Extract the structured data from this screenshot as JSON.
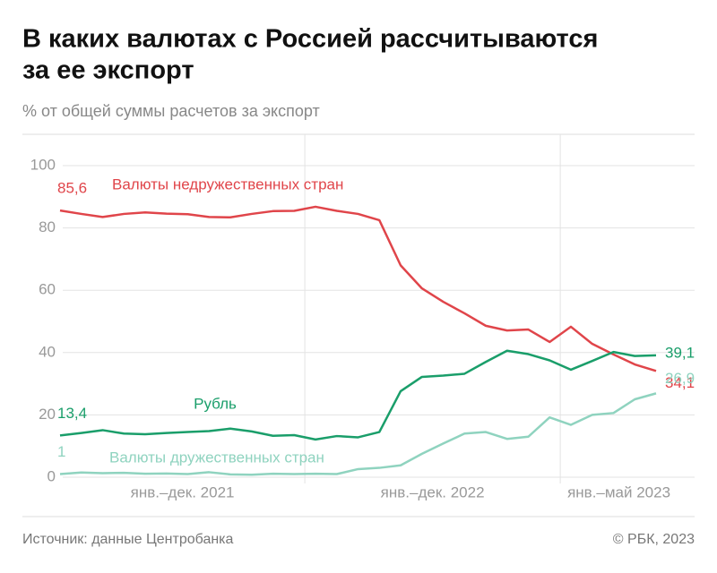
{
  "chart_data": {
    "type": "line",
    "title_lines": [
      "В каких валютах с Россией рассчитываются",
      "за ее экспорт"
    ],
    "subtitle": "% от общей суммы расчетов за экспорт",
    "categories": [
      null,
      null,
      null,
      null,
      null,
      null,
      null,
      null,
      null,
      null,
      null,
      null,
      null,
      null,
      null,
      null,
      null,
      null,
      null,
      null,
      null,
      null,
      null,
      null,
      null,
      null,
      null,
      null,
      null
    ],
    "period_labels": [
      "янв.–дек. 2021",
      "янв.–дек. 2022",
      "янв.–май 2023"
    ],
    "ylim": [
      0,
      100
    ],
    "yticks": [
      0,
      20,
      40,
      60,
      80,
      100
    ],
    "grid": true,
    "series": [
      {
        "name": "Валюты недружественных стран",
        "color": "#e0454a",
        "values": [
          85.6,
          84.5,
          83.5,
          84.5,
          85,
          84.6,
          84.4,
          83.5,
          83.4,
          84.5,
          85.4,
          85.5,
          86.8,
          85.5,
          84.5,
          82.5,
          68,
          60.6,
          56.3,
          52.6,
          48.6,
          47.1,
          47.4,
          43.4,
          48.3,
          42.8,
          39.4,
          36.2,
          34.1
        ],
        "value_labels": [
          "85,6",
          null,
          null,
          null,
          null,
          null,
          null,
          null,
          null,
          null,
          null,
          null,
          null,
          null,
          null,
          null,
          null,
          null,
          null,
          null,
          null,
          null,
          null,
          null,
          null,
          null,
          null,
          null,
          "34,1"
        ]
      },
      {
        "name": "Рубль",
        "color": "#1a9e6a",
        "values": [
          13.4,
          14.2,
          15.1,
          14,
          13.8,
          14.2,
          14.5,
          14.8,
          15.6,
          14.7,
          13.3,
          13.5,
          12.1,
          13.2,
          12.8,
          14.5,
          27.6,
          32.2,
          32.6,
          33.2,
          37,
          40.6,
          39.5,
          37.5,
          34.5,
          37.3,
          40.2,
          38.9,
          39.1
        ],
        "value_labels": [
          "13,4",
          null,
          null,
          null,
          null,
          null,
          null,
          null,
          null,
          null,
          null,
          null,
          null,
          null,
          null,
          null,
          null,
          null,
          null,
          null,
          null,
          null,
          null,
          null,
          null,
          null,
          null,
          null,
          "39,1"
        ]
      },
      {
        "name": "Валюты дружественных стран",
        "color": "#8fd3bf",
        "values": [
          1,
          1.5,
          1.3,
          1.4,
          1.1,
          1.2,
          1,
          1.6,
          0.9,
          0.8,
          1.1,
          1,
          1.1,
          1,
          2.6,
          3,
          3.8,
          7.5,
          10.8,
          14,
          14.5,
          12.3,
          13,
          19.2,
          16.8,
          20,
          20.6,
          25,
          26.9
        ],
        "value_labels": [
          "1",
          null,
          null,
          null,
          null,
          null,
          null,
          null,
          null,
          null,
          null,
          null,
          null,
          null,
          null,
          null,
          null,
          null,
          null,
          null,
          null,
          null,
          null,
          null,
          null,
          null,
          null,
          null,
          "26,9"
        ]
      }
    ],
    "source": "Источник: данные Центробанка",
    "credit": "© РБК, 2023"
  }
}
